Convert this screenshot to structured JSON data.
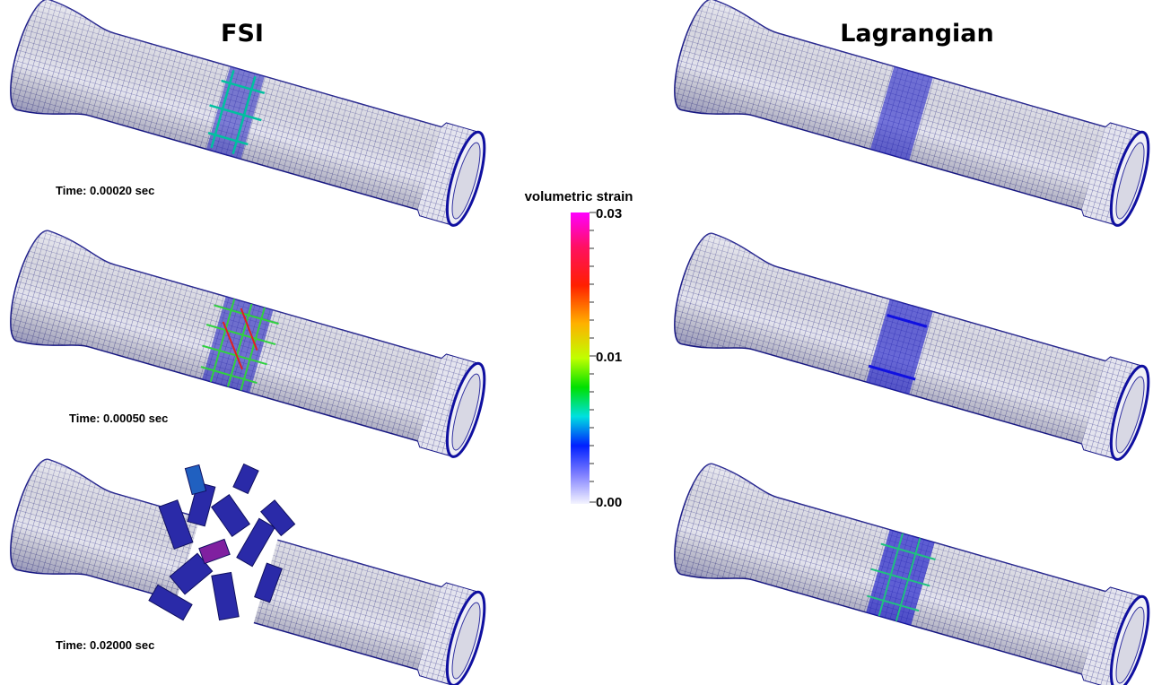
{
  "header": {
    "left": "FSI",
    "right": "Lagrangian"
  },
  "time_labels": [
    "Time: 0.00020 sec",
    "Time: 0.00050 sec",
    "Time: 0.02000 sec"
  ],
  "colorbar": {
    "title": "volumetric strain",
    "ticks": [
      "0.03",
      "0.01",
      "0.00"
    ]
  }
}
